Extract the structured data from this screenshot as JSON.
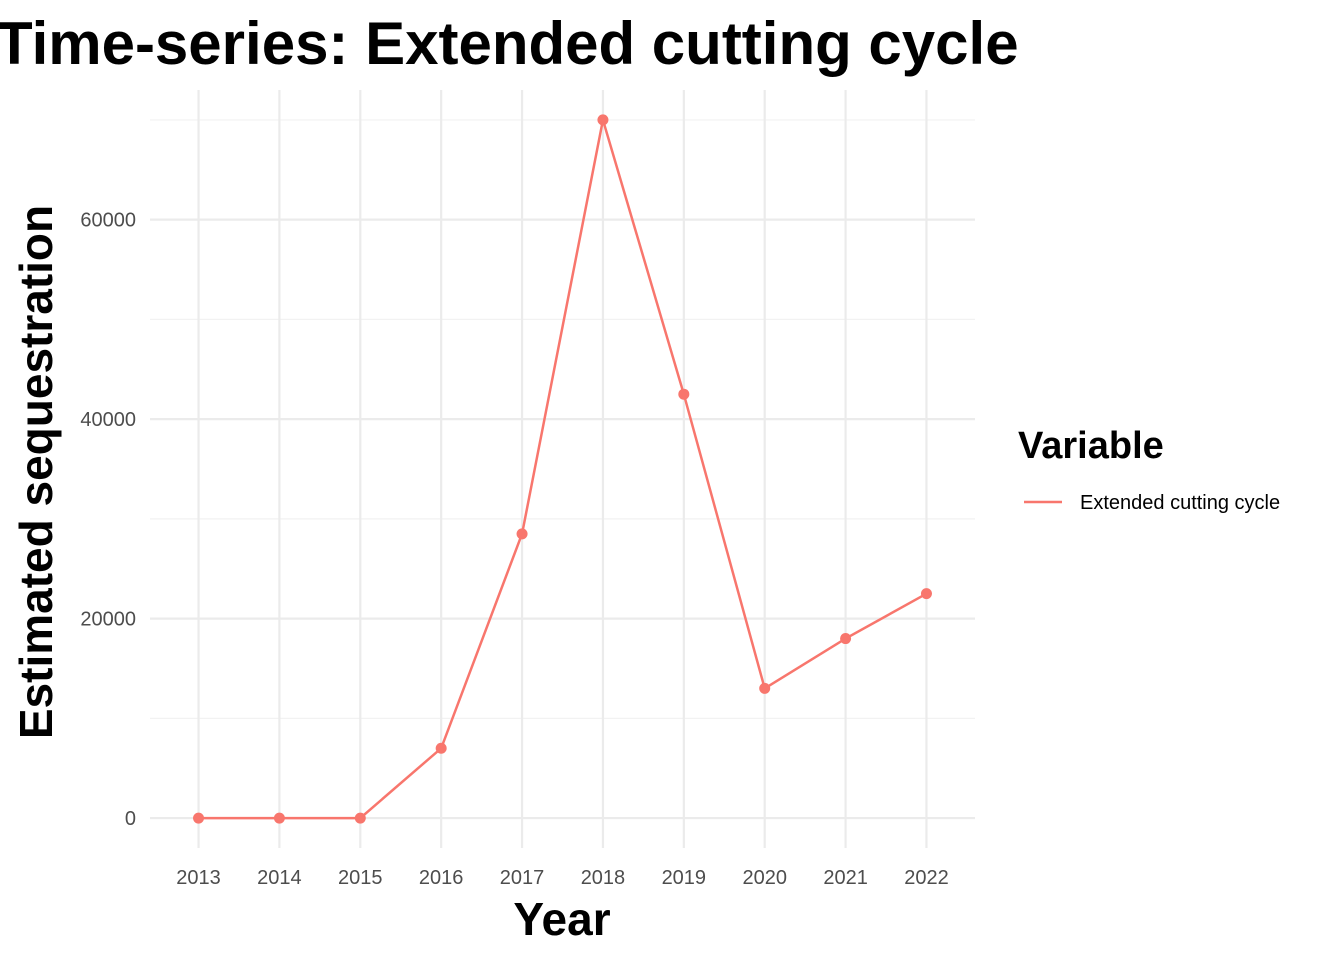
{
  "chart_data": {
    "type": "line",
    "title": "Time-series: Extended cutting cycle",
    "xlabel": "Year",
    "ylabel": "Estimated sequestration",
    "x": [
      2013,
      2014,
      2015,
      2016,
      2017,
      2018,
      2019,
      2020,
      2021,
      2022
    ],
    "x_tick_labels": [
      "2013",
      "2014",
      "2015",
      "2016",
      "2017",
      "2018",
      "2019",
      "2020",
      "2021",
      "2022"
    ],
    "y_ticks": [
      0,
      20000,
      40000,
      60000
    ],
    "y_tick_labels": [
      "0",
      "20000",
      "40000",
      "60000"
    ],
    "ylim": [
      -3000,
      73000
    ],
    "grid": true,
    "legend": {
      "title": "Variable",
      "placement": "right"
    },
    "series": [
      {
        "name": "Extended cutting cycle",
        "color": "#f8766d",
        "values": [
          0,
          0,
          0,
          7000,
          28500,
          70000,
          42500,
          13000,
          18000,
          22500
        ]
      }
    ]
  }
}
